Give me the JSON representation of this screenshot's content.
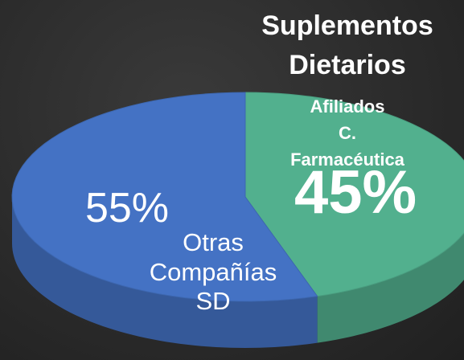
{
  "chart_data": {
    "type": "pie3d",
    "title": "Suplementos\nDietarios",
    "categories": [
      "Afiliados\nC. Farmacéutica",
      "Otras\nCompañías\nSD"
    ],
    "values": [
      45,
      55
    ],
    "value_labels": [
      "45%",
      "55%"
    ],
    "colors": [
      "#52b08e",
      "#4472c4"
    ]
  }
}
